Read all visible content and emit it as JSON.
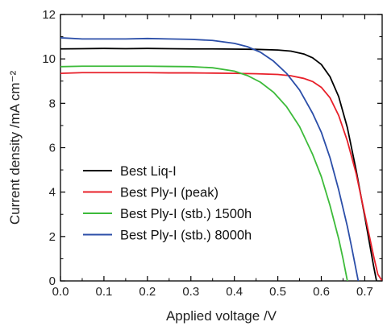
{
  "chart_data": {
    "type": "line",
    "title": "",
    "xlabel": "Applied voltage /V",
    "ylabel": "Current density /mA cm⁻²",
    "xlim": [
      0.0,
      0.74
    ],
    "ylim": [
      0,
      12
    ],
    "x_ticks": [
      "0.0",
      "0.1",
      "0.2",
      "0.3",
      "0.4",
      "0.5",
      "0.6",
      "0.7"
    ],
    "y_ticks": [
      "0",
      "2",
      "4",
      "6",
      "8",
      "10",
      "12"
    ],
    "grid": false,
    "legend_position": "bottom-left",
    "series": [
      {
        "name": "Best Liq-I",
        "color": "#000000",
        "points": [
          [
            0.0,
            10.45
          ],
          [
            0.05,
            10.46
          ],
          [
            0.1,
            10.47
          ],
          [
            0.15,
            10.46
          ],
          [
            0.2,
            10.47
          ],
          [
            0.25,
            10.46
          ],
          [
            0.3,
            10.45
          ],
          [
            0.35,
            10.45
          ],
          [
            0.4,
            10.44
          ],
          [
            0.45,
            10.43
          ],
          [
            0.5,
            10.4
          ],
          [
            0.53,
            10.35
          ],
          [
            0.56,
            10.22
          ],
          [
            0.58,
            10.05
          ],
          [
            0.6,
            9.75
          ],
          [
            0.62,
            9.2
          ],
          [
            0.64,
            8.3
          ],
          [
            0.66,
            6.9
          ],
          [
            0.68,
            5.0
          ],
          [
            0.7,
            2.9
          ],
          [
            0.71,
            1.8
          ],
          [
            0.72,
            0.7
          ],
          [
            0.727,
            0.0
          ]
        ]
      },
      {
        "name": "Best Ply-I (peak)",
        "color": "#e8202a",
        "points": [
          [
            0.0,
            9.35
          ],
          [
            0.05,
            9.38
          ],
          [
            0.1,
            9.38
          ],
          [
            0.15,
            9.38
          ],
          [
            0.2,
            9.38
          ],
          [
            0.25,
            9.37
          ],
          [
            0.3,
            9.37
          ],
          [
            0.35,
            9.36
          ],
          [
            0.4,
            9.35
          ],
          [
            0.45,
            9.33
          ],
          [
            0.5,
            9.3
          ],
          [
            0.53,
            9.24
          ],
          [
            0.56,
            9.12
          ],
          [
            0.58,
            8.98
          ],
          [
            0.6,
            8.72
          ],
          [
            0.62,
            8.25
          ],
          [
            0.64,
            7.45
          ],
          [
            0.66,
            6.3
          ],
          [
            0.68,
            4.85
          ],
          [
            0.7,
            3.0
          ],
          [
            0.72,
            1.15
          ],
          [
            0.73,
            0.3
          ],
          [
            0.74,
            0.0
          ]
        ]
      },
      {
        "name": "Best Ply-I (stb.) 1500h",
        "color": "#3dbb3a",
        "points": [
          [
            0.0,
            9.65
          ],
          [
            0.05,
            9.67
          ],
          [
            0.1,
            9.67
          ],
          [
            0.15,
            9.67
          ],
          [
            0.2,
            9.67
          ],
          [
            0.25,
            9.66
          ],
          [
            0.3,
            9.65
          ],
          [
            0.35,
            9.6
          ],
          [
            0.4,
            9.45
          ],
          [
            0.43,
            9.25
          ],
          [
            0.46,
            8.95
          ],
          [
            0.49,
            8.5
          ],
          [
            0.52,
            7.85
          ],
          [
            0.55,
            6.95
          ],
          [
            0.58,
            5.7
          ],
          [
            0.6,
            4.7
          ],
          [
            0.62,
            3.4
          ],
          [
            0.64,
            1.9
          ],
          [
            0.65,
            1.0
          ],
          [
            0.66,
            0.0
          ]
        ]
      },
      {
        "name": "Best Ply-I (stb.) 8000h",
        "color": "#2b4ea8",
        "points": [
          [
            0.0,
            10.95
          ],
          [
            0.05,
            10.9
          ],
          [
            0.1,
            10.9
          ],
          [
            0.15,
            10.9
          ],
          [
            0.2,
            10.92
          ],
          [
            0.25,
            10.9
          ],
          [
            0.3,
            10.88
          ],
          [
            0.35,
            10.83
          ],
          [
            0.4,
            10.7
          ],
          [
            0.43,
            10.55
          ],
          [
            0.46,
            10.3
          ],
          [
            0.49,
            9.9
          ],
          [
            0.52,
            9.35
          ],
          [
            0.55,
            8.6
          ],
          [
            0.58,
            7.55
          ],
          [
            0.6,
            6.7
          ],
          [
            0.62,
            5.55
          ],
          [
            0.64,
            4.1
          ],
          [
            0.66,
            2.45
          ],
          [
            0.67,
            1.5
          ],
          [
            0.68,
            0.5
          ],
          [
            0.685,
            0.0
          ]
        ]
      }
    ]
  }
}
